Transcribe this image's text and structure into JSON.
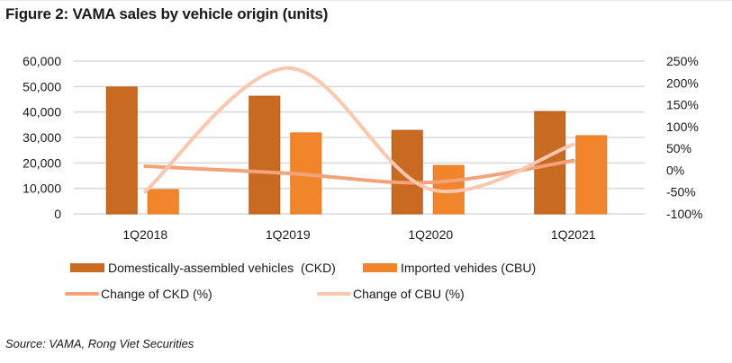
{
  "figure": {
    "title": "Figure 2: VAMA sales by vehicle origin (units)",
    "source": "Source: VAMA, Rong Viet Securities"
  },
  "colors": {
    "ckd_bar": "#C96A22",
    "cbu_bar": "#F0852C",
    "ckd_line": "#F4A27A",
    "cbu_line": "#FBC7AE",
    "grid": "#d9d9d9"
  },
  "chart_data": {
    "type": "bar",
    "title": "Figure 2: VAMA sales by vehicle origin (units)",
    "categories": [
      "1Q2018",
      "1Q2019",
      "1Q2020",
      "1Q2021"
    ],
    "series": [
      {
        "name": "Domestically-assembled vehicles  (CKD)",
        "type": "bar",
        "axis": "left",
        "values": [
          49800,
          46200,
          32800,
          40200
        ]
      },
      {
        "name": "Imported vehides (CBU)",
        "type": "bar",
        "axis": "left",
        "values": [
          9500,
          31800,
          19000,
          30700
        ]
      },
      {
        "name": "Change of CKD (%)",
        "type": "line",
        "axis": "right",
        "values": [
          9,
          -7,
          -28,
          22
        ]
      },
      {
        "name": "Change of CBU (%)",
        "type": "line",
        "axis": "right",
        "values": [
          -49,
          234,
          -44,
          59
        ]
      }
    ],
    "left_axis": {
      "ylim": [
        0,
        60000
      ],
      "ticks": [
        "0",
        "10,000",
        "20,000",
        "30,000",
        "40,000",
        "50,000",
        "60,000"
      ],
      "tick_values": [
        0,
        10000,
        20000,
        30000,
        40000,
        50000,
        60000
      ]
    },
    "right_axis": {
      "ylim": [
        -100,
        250
      ],
      "ticks": [
        "-100%",
        "-50%",
        "0%",
        "50%",
        "100%",
        "150%",
        "200%",
        "250%"
      ],
      "tick_values": [
        -100,
        -50,
        0,
        50,
        100,
        150,
        200,
        250
      ]
    },
    "xlabel": "",
    "ylabel": "",
    "grid": true,
    "legend_position": "bottom"
  }
}
